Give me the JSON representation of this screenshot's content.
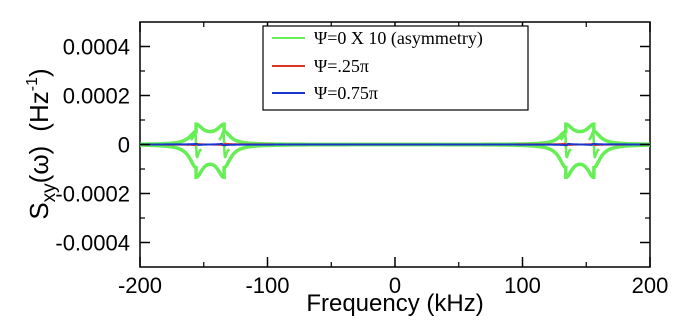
{
  "chart_data": {
    "type": "line",
    "xlabel": "Frequency (kHz)",
    "ylabel": "S_xy(ω) (Hz^-1)",
    "ylabel_main": "S",
    "ylabel_sub": "xy",
    "ylabel_omega": "(ω)",
    "ylabel_unit": "(Hz",
    "ylabel_exp": "-1",
    "ylabel_close": ")",
    "xlim": [
      -200,
      200
    ],
    "ylim": [
      -0.0005,
      0.0005
    ],
    "x_ticks": [
      {
        "value": -200,
        "label": "-200"
      },
      {
        "value": -100,
        "label": "-100"
      },
      {
        "value": 0,
        "label": "0"
      },
      {
        "value": 100,
        "label": "100"
      },
      {
        "value": 200,
        "label": "200"
      }
    ],
    "y_ticks": [
      {
        "value": 0.0004,
        "label": "0.0004"
      },
      {
        "value": 0.0002,
        "label": "0.0002"
      },
      {
        "value": 0,
        "label": "0"
      },
      {
        "value": -0.0002,
        "label": "-0.0002"
      },
      {
        "value": -0.0004,
        "label": "-0.0004"
      }
    ],
    "grid": false,
    "legend_position": "top-center",
    "series": [
      {
        "name": "Ψ=0  X 10 (asymmetry)",
        "color": "#66ee55",
        "peaks": [
          {
            "center": -156,
            "amplitude": 1.6e-05,
            "width": 1.2,
            "sign": -1
          },
          {
            "center": -134,
            "amplitude": 1.6e-05,
            "width": 1.2,
            "sign": -1
          },
          {
            "center": 134,
            "amplitude": 1.6e-05,
            "width": 1.2,
            "sign": -1
          },
          {
            "center": 156,
            "amplitude": 1.6e-05,
            "width": 1.2,
            "sign": -1
          }
        ],
        "upper_band": 9e-05,
        "lower_band": -0.00016
      },
      {
        "name": "Ψ=.25π",
        "color": "#dd3322",
        "peaks": [
          {
            "center": -156,
            "amplitude": 4.5e-06,
            "width": 1.1,
            "sign": 1
          },
          {
            "center": -134,
            "amplitude": 5.8e-06,
            "width": 1.1,
            "sign": 1
          },
          {
            "center": 134,
            "amplitude": 5.8e-06,
            "width": 1.1,
            "sign": -1
          },
          {
            "center": 156,
            "amplitude": 4.5e-06,
            "width": 1.1,
            "sign": -1
          }
        ]
      },
      {
        "name": "Ψ=0.75π",
        "color": "#1a33cc",
        "peaks": [
          {
            "center": -155,
            "amplitude": 4.5e-06,
            "width": 1.1,
            "sign": -1
          },
          {
            "center": -135,
            "amplitude": 5.8e-06,
            "width": 1.1,
            "sign": -1
          },
          {
            "center": 135,
            "amplitude": 5.8e-06,
            "width": 1.1,
            "sign": 1
          },
          {
            "center": 155,
            "amplitude": 4.5e-06,
            "width": 1.1,
            "sign": 1
          }
        ]
      }
    ]
  }
}
